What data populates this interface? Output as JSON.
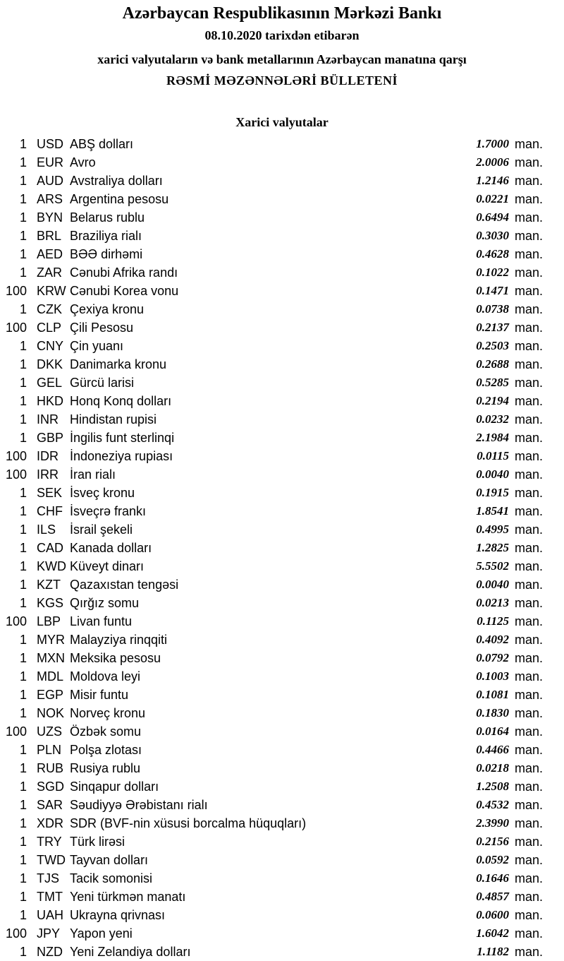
{
  "header": {
    "title": "Azərbaycan Respublikasının Mərkəzi Bankı",
    "date_line": "08.10.2020 tarixdən etibarən",
    "subtitle": "xarici valyutaların və bank metallarının Azərbaycan manatına qarşı",
    "bulletin": "RƏSMİ MƏZƏNNƏLƏRİ BÜLLETENİ"
  },
  "section": {
    "title": "Xarici valyutalar"
  },
  "unit": "man.",
  "rates": [
    {
      "qty": "1",
      "code": "USD",
      "name": "ABŞ dolları",
      "rate": "1.7000"
    },
    {
      "qty": "1",
      "code": "EUR",
      "name": "Avro",
      "rate": "2.0006"
    },
    {
      "qty": "1",
      "code": "AUD",
      "name": "Avstraliya dolları",
      "rate": "1.2146"
    },
    {
      "qty": "1",
      "code": "ARS",
      "name": "Argentina pesosu",
      "rate": "0.0221"
    },
    {
      "qty": "1",
      "code": "BYN",
      "name": "Belarus rublu",
      "rate": "0.6494"
    },
    {
      "qty": "1",
      "code": "BRL",
      "name": "Braziliya rialı",
      "rate": "0.3030"
    },
    {
      "qty": "1",
      "code": "AED",
      "name": "BƏƏ dirhəmi",
      "rate": "0.4628"
    },
    {
      "qty": "1",
      "code": "ZAR",
      "name": "Cənubi Afrika randı",
      "rate": "0.1022"
    },
    {
      "qty": "100",
      "code": "KRW",
      "name": "Cənubi Korea vonu",
      "rate": "0.1471"
    },
    {
      "qty": "1",
      "code": "CZK",
      "name": "Çexiya kronu",
      "rate": "0.0738"
    },
    {
      "qty": "100",
      "code": "CLP",
      "name": "Çili Pesosu",
      "rate": "0.2137"
    },
    {
      "qty": "1",
      "code": "CNY",
      "name": "Çin yuanı",
      "rate": "0.2503"
    },
    {
      "qty": "1",
      "code": "DKK",
      "name": "Danimarka kronu",
      "rate": "0.2688"
    },
    {
      "qty": "1",
      "code": "GEL",
      "name": "Gürcü larisi",
      "rate": "0.5285"
    },
    {
      "qty": "1",
      "code": "HKD",
      "name": "Honq Konq dolları",
      "rate": "0.2194"
    },
    {
      "qty": "1",
      "code": "INR",
      "name": "Hindistan rupisi",
      "rate": "0.0232"
    },
    {
      "qty": "1",
      "code": "GBP",
      "name": "İngilis funt sterlinqi",
      "rate": "2.1984"
    },
    {
      "qty": "100",
      "code": "IDR",
      "name": "İndoneziya rupiası",
      "rate": "0.0115"
    },
    {
      "qty": "100",
      "code": "IRR",
      "name": "İran rialı",
      "rate": "0.0040"
    },
    {
      "qty": "1",
      "code": "SEK",
      "name": "İsveç kronu",
      "rate": "0.1915"
    },
    {
      "qty": "1",
      "code": "CHF",
      "name": "İsveçrə frankı",
      "rate": "1.8541"
    },
    {
      "qty": "1",
      "code": "ILS",
      "name": "İsrail şekeli",
      "rate": "0.4995"
    },
    {
      "qty": "1",
      "code": "CAD",
      "name": "Kanada dolları",
      "rate": "1.2825"
    },
    {
      "qty": "1",
      "code": "KWD",
      "name": "Küveyt dinarı",
      "rate": "5.5502"
    },
    {
      "qty": "1",
      "code": "KZT",
      "name": "Qazaxıstan tengəsi",
      "rate": "0.0040"
    },
    {
      "qty": "1",
      "code": "KGS",
      "name": "Qırğız somu",
      "rate": "0.0213"
    },
    {
      "qty": "100",
      "code": "LBP",
      "name": "Livan funtu",
      "rate": "0.1125"
    },
    {
      "qty": "1",
      "code": "MYR",
      "name": "Malayziya rinqqiti",
      "rate": "0.4092"
    },
    {
      "qty": "1",
      "code": "MXN",
      "name": "Meksika pesosu",
      "rate": "0.0792"
    },
    {
      "qty": "1",
      "code": "MDL",
      "name": "Moldova leyi",
      "rate": "0.1003"
    },
    {
      "qty": "1",
      "code": "EGP",
      "name": "Misir funtu",
      "rate": "0.1081"
    },
    {
      "qty": "1",
      "code": "NOK",
      "name": "Norveç kronu",
      "rate": "0.1830"
    },
    {
      "qty": "100",
      "code": "UZS",
      "name": "Özbək somu",
      "rate": "0.0164"
    },
    {
      "qty": "1",
      "code": "PLN",
      "name": "Polşa zlotası",
      "rate": "0.4466"
    },
    {
      "qty": "1",
      "code": "RUB",
      "name": "Rusiya rublu",
      "rate": "0.0218"
    },
    {
      "qty": "1",
      "code": "SGD",
      "name": "Sinqapur dolları",
      "rate": "1.2508"
    },
    {
      "qty": "1",
      "code": "SAR",
      "name": "Səudiyyə Ərəbistanı rialı",
      "rate": "0.4532"
    },
    {
      "qty": "1",
      "code": "XDR",
      "name": "SDR (BVF-nin xüsusi borcalma hüquqları)",
      "rate": "2.3990"
    },
    {
      "qty": "1",
      "code": "TRY",
      "name": "Türk lirəsi",
      "rate": "0.2156"
    },
    {
      "qty": "1",
      "code": "TWD",
      "name": "Tayvan dolları",
      "rate": "0.0592"
    },
    {
      "qty": "1",
      "code": "TJS",
      "name": "Tacik somonisi",
      "rate": "0.1646"
    },
    {
      "qty": "1",
      "code": "TMT",
      "name": "Yeni türkmən manatı",
      "rate": "0.4857"
    },
    {
      "qty": "1",
      "code": "UAH",
      "name": "Ukrayna qrivnası",
      "rate": "0.0600"
    },
    {
      "qty": "100",
      "code": "JPY",
      "name": "Yapon yeni",
      "rate": "1.6042"
    },
    {
      "qty": "1",
      "code": "NZD",
      "name": "Yeni Zelandiya dolları",
      "rate": "1.1182"
    }
  ]
}
